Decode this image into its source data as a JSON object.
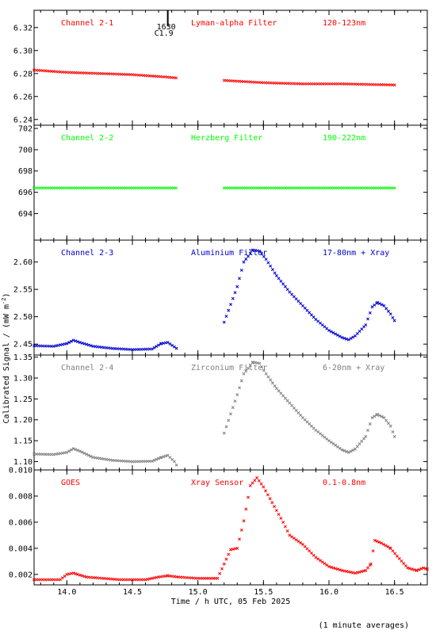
{
  "figure": {
    "ylabel": "Calibrated Signal / (mW m",
    "ylabel_sup": "-2",
    "ylabel_close": ")",
    "xlabel": "Time / h UTC, 05 Feb 2025",
    "footnote": "(1 minute averages)",
    "flare_time": "1630",
    "flare_class": "C1.9",
    "xlim": [
      13.75,
      16.75
    ],
    "xticks": [
      "14.0",
      "14.5",
      "15.0",
      "15.5",
      "16.0",
      "16.5"
    ]
  },
  "chart_data": [
    {
      "type": "scatter",
      "name": "Channel 2-1",
      "filter": "Lyman-alpha Filter",
      "band": "120-123nm",
      "color": "#ff0000",
      "ylim": [
        6.235,
        6.335
      ],
      "yticks": [
        "6.24",
        "6.26",
        "6.28",
        "6.30",
        "6.32"
      ],
      "x": [
        13.75,
        14.0,
        14.25,
        14.5,
        14.75,
        14.85,
        null,
        15.2,
        15.5,
        15.8,
        16.1,
        16.5
      ],
      "y": [
        6.283,
        6.281,
        6.28,
        6.279,
        6.277,
        6.276,
        null,
        6.274,
        6.272,
        6.271,
        6.271,
        6.27
      ]
    },
    {
      "type": "scatter",
      "name": "Channel 2-2",
      "filter": "Herzberg Filter",
      "band": "190-222nm",
      "color": "#00ff00",
      "ylim": [
        691.5,
        702.3
      ],
      "yticks": [
        "694",
        "696",
        "698",
        "700",
        "702"
      ],
      "x": [
        13.75,
        14.2,
        14.85,
        null,
        15.2,
        15.8,
        16.5
      ],
      "y": [
        696.4,
        696.4,
        696.4,
        null,
        696.4,
        696.4,
        696.4
      ]
    },
    {
      "type": "scatter",
      "name": "Channel 2-3",
      "filter": "Aluminium Filter",
      "band": "17-80nm + Xray",
      "color": "#0000cc",
      "ylim": [
        2.43,
        2.64
      ],
      "yticks": [
        "2.45",
        "2.50",
        "2.55",
        "2.60"
      ],
      "x": [
        13.75,
        13.9,
        14.0,
        14.05,
        14.1,
        14.2,
        14.35,
        14.5,
        14.65,
        14.72,
        14.77,
        14.82,
        14.85,
        null,
        15.2,
        15.3,
        15.35,
        15.42,
        15.47,
        15.52,
        15.6,
        15.7,
        15.8,
        15.9,
        16.0,
        16.1,
        16.15,
        16.2,
        16.28,
        16.33,
        16.37,
        16.42,
        16.47,
        16.5
      ],
      "y": [
        2.447,
        2.446,
        2.451,
        2.457,
        2.453,
        2.446,
        2.442,
        2.44,
        2.441,
        2.451,
        2.453,
        2.445,
        2.44,
        null,
        2.49,
        2.555,
        2.6,
        2.622,
        2.62,
        2.605,
        2.575,
        2.545,
        2.52,
        2.495,
        2.475,
        2.462,
        2.458,
        2.465,
        2.485,
        2.518,
        2.526,
        2.52,
        2.505,
        2.493
      ]
    },
    {
      "type": "scatter",
      "name": "Channel 2-4",
      "filter": "Zirconium Filter",
      "band": "6-20nm + Xray",
      "color": "#808080",
      "ylim": [
        1.08,
        1.355
      ],
      "yticks": [
        "1.10",
        "1.15",
        "1.20",
        "1.25",
        "1.30",
        "1.35"
      ],
      "x": [
        13.75,
        13.9,
        14.0,
        14.05,
        14.1,
        14.2,
        14.35,
        14.5,
        14.65,
        14.72,
        14.77,
        14.82,
        14.85,
        null,
        15.2,
        15.3,
        15.35,
        15.42,
        15.47,
        15.52,
        15.6,
        15.7,
        15.8,
        15.9,
        16.0,
        16.1,
        16.15,
        16.2,
        16.28,
        16.33,
        16.37,
        16.42,
        16.47,
        16.5
      ],
      "y": [
        1.118,
        1.117,
        1.122,
        1.131,
        1.125,
        1.11,
        1.103,
        1.1,
        1.101,
        1.11,
        1.115,
        1.1,
        1.085,
        null,
        1.168,
        1.26,
        1.31,
        1.338,
        1.335,
        1.31,
        1.275,
        1.24,
        1.205,
        1.175,
        1.15,
        1.128,
        1.122,
        1.13,
        1.16,
        1.205,
        1.213,
        1.205,
        1.185,
        1.16
      ]
    },
    {
      "type": "scatter",
      "name": "GOES",
      "filter": "Xray Sensor",
      "band": "0.1-0.8nm",
      "color": "#ff0000",
      "ylim": [
        0.0012,
        0.01
      ],
      "yticks": [
        "0.002",
        "0.004",
        "0.006",
        "0.008",
        "0.010"
      ],
      "x": [
        13.75,
        13.95,
        14.0,
        14.05,
        14.15,
        14.4,
        14.6,
        14.7,
        14.77,
        14.85,
        15.0,
        15.15,
        15.2,
        15.25,
        15.3,
        15.35,
        15.4,
        15.45,
        15.5,
        15.55,
        15.6,
        15.65,
        15.7,
        15.8,
        15.9,
        16.0,
        16.1,
        16.15,
        16.2,
        16.28,
        16.32,
        16.35,
        16.4,
        16.47,
        16.52,
        16.6,
        16.67,
        16.72,
        16.75
      ],
      "y": [
        0.0016,
        0.0016,
        0.002,
        0.0021,
        0.0018,
        0.0016,
        0.0016,
        0.0018,
        0.0019,
        0.0018,
        0.0017,
        0.0017,
        0.0028,
        0.0039,
        0.004,
        0.0061,
        0.0088,
        0.0094,
        0.0087,
        0.0078,
        0.0069,
        0.006,
        0.005,
        0.0043,
        0.0033,
        0.0026,
        0.0023,
        0.0022,
        0.0021,
        0.0023,
        0.0028,
        0.0046,
        0.0044,
        0.004,
        0.0034,
        0.0025,
        0.0023,
        0.0025,
        0.0024
      ]
    }
  ]
}
